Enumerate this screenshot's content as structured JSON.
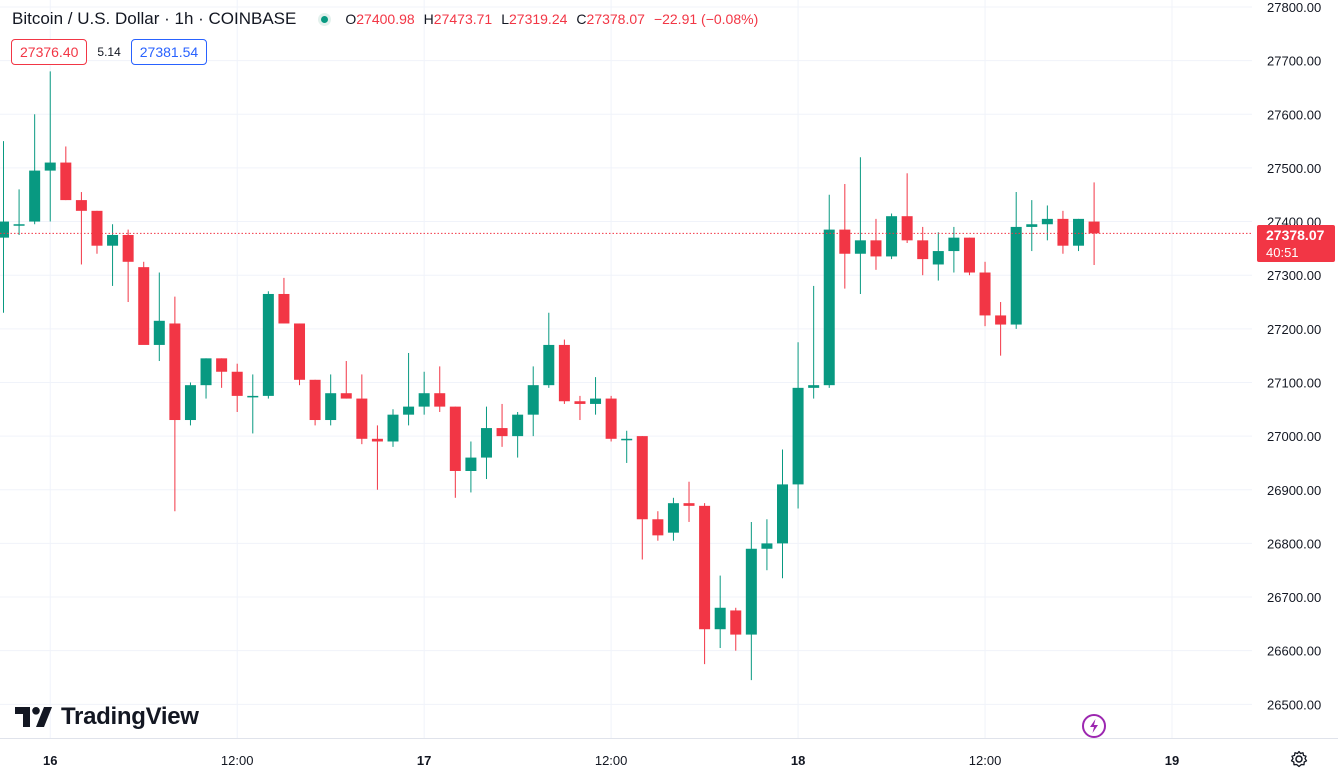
{
  "header": {
    "title": "Bitcoin / U.S. Dollar · 1h · COINBASE",
    "open_label": "O",
    "open": "27400.98",
    "high_label": "H",
    "high": "27473.71",
    "low_label": "L",
    "low": "27319.24",
    "close_label": "C",
    "close": "27378.07",
    "change": "−22.91 (−0.08%)"
  },
  "quote": {
    "sell": "27376.40",
    "spread": "5.14",
    "buy": "27381.54"
  },
  "last_price": {
    "price": "27378.07",
    "countdown": "40:51"
  },
  "branding": {
    "logo_text": "TradingView"
  },
  "colors": {
    "up": "#089981",
    "down": "#f23645",
    "grid": "#f0f3fa",
    "text": "#131722",
    "last_line": "#f23645"
  },
  "icons": [
    "live-status-icon",
    "tradingview-logo-icon",
    "lightning-icon",
    "settings-gear-icon"
  ],
  "chart_data": {
    "type": "candlestick",
    "symbol": "BTCUSD",
    "interval": "1h",
    "grid": true,
    "ylim": [
      26460,
      27810
    ],
    "y_ticks": [
      27800,
      27700,
      27600,
      27500,
      27400,
      27300,
      27200,
      27100,
      27000,
      26900,
      26800,
      26700,
      26600,
      26500
    ],
    "y_tick_labels": [
      "27800.00",
      "27700.00",
      "27600.00",
      "27500.00",
      "27400.00",
      "27300.00",
      "27200.00",
      "27100.00",
      "27000.00",
      "26900.00",
      "26800.00",
      "26700.00",
      "26600.00",
      "26500.00"
    ],
    "x_ticks": [
      {
        "index": 3,
        "label": "16"
      },
      {
        "index": 15,
        "label": "12:00"
      },
      {
        "index": 27,
        "label": "17"
      },
      {
        "index": 39,
        "label": "12:00"
      },
      {
        "index": 51,
        "label": "18"
      },
      {
        "index": 63,
        "label": "12:00"
      },
      {
        "index": 75,
        "label": "19"
      }
    ],
    "last_price": 27378.07,
    "candles": [
      [
        27370,
        27550,
        27230,
        27400
      ],
      [
        27395,
        27460,
        27375,
        27395
      ],
      [
        27400,
        27600,
        27395,
        27495
      ],
      [
        27495,
        27680,
        27400,
        27510
      ],
      [
        27510,
        27540,
        27440,
        27440
      ],
      [
        27440,
        27455,
        27320,
        27420
      ],
      [
        27420,
        27420,
        27340,
        27355
      ],
      [
        27355,
        27395,
        27280,
        27375
      ],
      [
        27375,
        27385,
        27250,
        27325
      ],
      [
        27315,
        27325,
        27180,
        27170
      ],
      [
        27170,
        27305,
        27140,
        27215
      ],
      [
        27210,
        27260,
        26860,
        27030
      ],
      [
        27030,
        27100,
        27020,
        27095
      ],
      [
        27095,
        27145,
        27070,
        27145
      ],
      [
        27145,
        27145,
        27090,
        27120
      ],
      [
        27120,
        27135,
        27045,
        27075
      ],
      [
        27075,
        27115,
        27005,
        27075
      ],
      [
        27075,
        27270,
        27070,
        27265
      ],
      [
        27265,
        27295,
        27210,
        27210
      ],
      [
        27210,
        27210,
        27095,
        27105
      ],
      [
        27105,
        27105,
        27020,
        27030
      ],
      [
        27030,
        27115,
        27020,
        27080
      ],
      [
        27080,
        27140,
        27070,
        27070
      ],
      [
        27070,
        27115,
        26985,
        26995
      ],
      [
        26995,
        27020,
        26900,
        26990
      ],
      [
        26990,
        27050,
        26980,
        27040
      ],
      [
        27040,
        27155,
        27020,
        27055
      ],
      [
        27055,
        27120,
        27040,
        27080
      ],
      [
        27080,
        27130,
        27045,
        27055
      ],
      [
        27055,
        27055,
        26885,
        26935
      ],
      [
        26935,
        26990,
        26895,
        26960
      ],
      [
        26960,
        27055,
        26920,
        27015
      ],
      [
        27015,
        27060,
        26980,
        27000
      ],
      [
        27000,
        27045,
        26960,
        27040
      ],
      [
        27040,
        27130,
        27000,
        27095
      ],
      [
        27095,
        27230,
        27090,
        27170
      ],
      [
        27170,
        27180,
        27060,
        27065
      ],
      [
        27065,
        27075,
        27030,
        27060
      ],
      [
        27060,
        27110,
        27040,
        27070
      ],
      [
        27070,
        27075,
        26990,
        26995
      ],
      [
        26995,
        27010,
        26950,
        26995
      ],
      [
        27000,
        27000,
        26770,
        26845
      ],
      [
        26845,
        26860,
        26805,
        26815
      ],
      [
        26820,
        26885,
        26805,
        26875
      ],
      [
        26875,
        26915,
        26840,
        26870
      ],
      [
        26870,
        26875,
        26575,
        26640
      ],
      [
        26640,
        26740,
        26605,
        26680
      ],
      [
        26675,
        26680,
        26600,
        26630
      ],
      [
        26630,
        26840,
        26545,
        26790
      ],
      [
        26790,
        26845,
        26750,
        26800
      ],
      [
        26800,
        26975,
        26735,
        26910
      ],
      [
        26910,
        27175,
        26865,
        27090
      ],
      [
        27090,
        27280,
        27070,
        27095
      ],
      [
        27095,
        27450,
        27090,
        27385
      ],
      [
        27385,
        27470,
        27275,
        27340
      ],
      [
        27340,
        27520,
        27265,
        27365
      ],
      [
        27365,
        27405,
        27310,
        27335
      ],
      [
        27335,
        27415,
        27330,
        27410
      ],
      [
        27410,
        27490,
        27360,
        27365
      ],
      [
        27365,
        27390,
        27300,
        27330
      ],
      [
        27320,
        27380,
        27290,
        27345
      ],
      [
        27345,
        27390,
        27305,
        27370
      ],
      [
        27370,
        27370,
        27300,
        27305
      ],
      [
        27305,
        27325,
        27205,
        27225
      ],
      [
        27225,
        27250,
        27150,
        27208
      ],
      [
        27208,
        27455,
        27200,
        27390
      ],
      [
        27390,
        27440,
        27345,
        27395
      ],
      [
        27395,
        27430,
        27365,
        27405
      ],
      [
        27405,
        27420,
        27340,
        27355
      ],
      [
        27355,
        27405,
        27345,
        27405
      ],
      [
        27400,
        27473,
        27319,
        27378
      ]
    ]
  }
}
